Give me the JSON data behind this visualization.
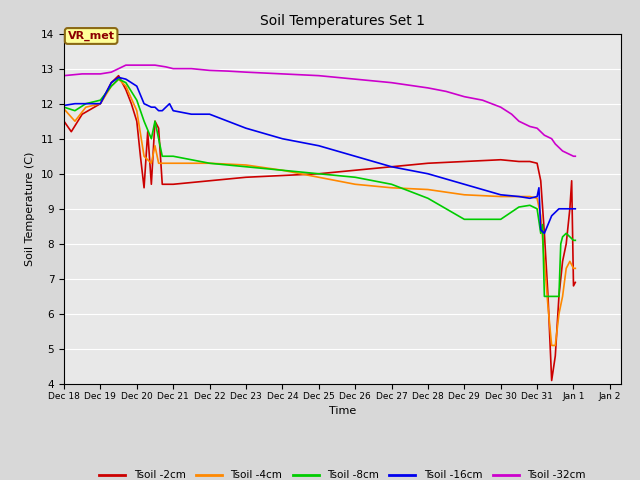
{
  "title": "Soil Temperatures Set 1",
  "xlabel": "Time",
  "ylabel": "Soil Temperature (C)",
  "ylim": [
    4.0,
    14.0
  ],
  "yticks": [
    4.0,
    5.0,
    6.0,
    7.0,
    8.0,
    9.0,
    10.0,
    11.0,
    12.0,
    13.0,
    14.0
  ],
  "fig_bg_color": "#d8d8d8",
  "plot_bg_color": "#e8e8e8",
  "annotation_text": "VR_met",
  "annotation_bg": "#ffff99",
  "annotation_border": "#8B6914",
  "series": {
    "Tsoil -2cm": {
      "color": "#cc0000",
      "data": [
        [
          18,
          11.5
        ],
        [
          18.2,
          11.2
        ],
        [
          18.5,
          11.7
        ],
        [
          19,
          12.0
        ],
        [
          19.3,
          12.6
        ],
        [
          19.5,
          12.8
        ],
        [
          19.7,
          12.4
        ],
        [
          19.85,
          12.0
        ],
        [
          20,
          11.5
        ],
        [
          20.1,
          10.5
        ],
        [
          20.2,
          9.6
        ],
        [
          20.3,
          11.2
        ],
        [
          20.4,
          9.7
        ],
        [
          20.5,
          11.5
        ],
        [
          20.6,
          11.3
        ],
        [
          20.7,
          9.7
        ],
        [
          20.8,
          9.7
        ],
        [
          21,
          9.7
        ],
        [
          22,
          9.8
        ],
        [
          23,
          9.9
        ],
        [
          24,
          9.95
        ],
        [
          25,
          10.0
        ],
        [
          26,
          10.1
        ],
        [
          27,
          10.2
        ],
        [
          28,
          10.3
        ],
        [
          29,
          10.35
        ],
        [
          30,
          10.4
        ],
        [
          30.5,
          10.35
        ],
        [
          30.8,
          10.35
        ],
        [
          31,
          10.3
        ],
        [
          31.1,
          9.8
        ],
        [
          31.2,
          8.3
        ],
        [
          31.3,
          6.5
        ],
        [
          31.4,
          4.1
        ],
        [
          31.5,
          4.8
        ],
        [
          31.6,
          6.5
        ],
        [
          31.7,
          7.5
        ],
        [
          31.8,
          8.0
        ],
        [
          31.9,
          9.0
        ],
        [
          31.95,
          9.8
        ],
        [
          32.0,
          6.8
        ],
        [
          32.05,
          6.9
        ]
      ]
    },
    "Tsoil -4cm": {
      "color": "#ff8800",
      "data": [
        [
          18,
          11.85
        ],
        [
          18.3,
          11.5
        ],
        [
          18.6,
          11.9
        ],
        [
          19,
          12.0
        ],
        [
          19.3,
          12.5
        ],
        [
          19.5,
          12.7
        ],
        [
          19.7,
          12.5
        ],
        [
          20,
          11.8
        ],
        [
          20.2,
          10.5
        ],
        [
          20.4,
          10.3
        ],
        [
          20.5,
          10.8
        ],
        [
          20.6,
          10.3
        ],
        [
          20.7,
          10.3
        ],
        [
          21,
          10.3
        ],
        [
          22,
          10.3
        ],
        [
          23,
          10.25
        ],
        [
          24,
          10.1
        ],
        [
          25,
          9.9
        ],
        [
          26,
          9.7
        ],
        [
          27,
          9.6
        ],
        [
          28,
          9.55
        ],
        [
          29,
          9.4
        ],
        [
          30,
          9.35
        ],
        [
          30.5,
          9.35
        ],
        [
          30.8,
          9.35
        ],
        [
          31,
          9.3
        ],
        [
          31.1,
          8.8
        ],
        [
          31.2,
          7.5
        ],
        [
          31.3,
          6.2
        ],
        [
          31.4,
          5.1
        ],
        [
          31.5,
          5.1
        ],
        [
          31.6,
          6.0
        ],
        [
          31.7,
          6.5
        ],
        [
          31.8,
          7.3
        ],
        [
          31.9,
          7.5
        ],
        [
          32.0,
          7.3
        ],
        [
          32.05,
          7.3
        ]
      ]
    },
    "Tsoil -8cm": {
      "color": "#00cc00",
      "data": [
        [
          18,
          11.9
        ],
        [
          18.3,
          11.8
        ],
        [
          18.6,
          12.0
        ],
        [
          19,
          12.1
        ],
        [
          19.3,
          12.5
        ],
        [
          19.5,
          12.7
        ],
        [
          19.7,
          12.6
        ],
        [
          20,
          12.1
        ],
        [
          20.2,
          11.5
        ],
        [
          20.4,
          11.0
        ],
        [
          20.5,
          11.5
        ],
        [
          20.6,
          11.0
        ],
        [
          20.7,
          10.5
        ],
        [
          21,
          10.5
        ],
        [
          22,
          10.3
        ],
        [
          23,
          10.2
        ],
        [
          24,
          10.1
        ],
        [
          25,
          10.0
        ],
        [
          26,
          9.9
        ],
        [
          27,
          9.7
        ],
        [
          28,
          9.3
        ],
        [
          29,
          8.7
        ],
        [
          29.5,
          8.7
        ],
        [
          30,
          8.7
        ],
        [
          30.5,
          9.05
        ],
        [
          30.8,
          9.1
        ],
        [
          31,
          9.0
        ],
        [
          31.1,
          8.3
        ],
        [
          31.15,
          8.55
        ],
        [
          31.2,
          6.5
        ],
        [
          31.3,
          6.5
        ],
        [
          31.4,
          6.5
        ],
        [
          31.5,
          6.5
        ],
        [
          31.6,
          6.5
        ],
        [
          31.65,
          8.0
        ],
        [
          31.7,
          8.2
        ],
        [
          31.8,
          8.3
        ],
        [
          32.0,
          8.1
        ],
        [
          32.05,
          8.1
        ]
      ]
    },
    "Tsoil -16cm": {
      "color": "#0000ee",
      "data": [
        [
          18,
          11.95
        ],
        [
          18.3,
          12.0
        ],
        [
          18.5,
          12.0
        ],
        [
          19,
          12.0
        ],
        [
          19.3,
          12.6
        ],
        [
          19.5,
          12.75
        ],
        [
          19.7,
          12.7
        ],
        [
          20,
          12.5
        ],
        [
          20.2,
          12.0
        ],
        [
          20.4,
          11.9
        ],
        [
          20.5,
          11.9
        ],
        [
          20.6,
          11.8
        ],
        [
          20.7,
          11.8
        ],
        [
          20.8,
          11.9
        ],
        [
          20.9,
          12.0
        ],
        [
          21,
          11.8
        ],
        [
          21.5,
          11.7
        ],
        [
          22,
          11.7
        ],
        [
          22.5,
          11.5
        ],
        [
          23,
          11.3
        ],
        [
          24,
          11.0
        ],
        [
          25,
          10.8
        ],
        [
          26,
          10.5
        ],
        [
          27,
          10.2
        ],
        [
          28,
          10.0
        ],
        [
          29,
          9.7
        ],
        [
          30,
          9.4
        ],
        [
          30.5,
          9.35
        ],
        [
          30.8,
          9.3
        ],
        [
          31,
          9.35
        ],
        [
          31.05,
          9.6
        ],
        [
          31.1,
          8.4
        ],
        [
          31.15,
          8.35
        ],
        [
          31.2,
          8.3
        ],
        [
          31.3,
          8.55
        ],
        [
          31.4,
          8.8
        ],
        [
          31.5,
          8.9
        ],
        [
          31.6,
          9.0
        ],
        [
          31.7,
          9.0
        ],
        [
          31.8,
          9.0
        ],
        [
          31.9,
          9.0
        ],
        [
          32.0,
          9.0
        ],
        [
          32.05,
          9.0
        ]
      ]
    },
    "Tsoil -32cm": {
      "color": "#cc00cc",
      "data": [
        [
          18,
          12.8
        ],
        [
          18.5,
          12.85
        ],
        [
          19,
          12.85
        ],
        [
          19.3,
          12.9
        ],
        [
          19.5,
          13.0
        ],
        [
          19.7,
          13.1
        ],
        [
          20,
          13.1
        ],
        [
          20.3,
          13.1
        ],
        [
          20.5,
          13.1
        ],
        [
          20.8,
          13.05
        ],
        [
          21,
          13.0
        ],
        [
          21.5,
          13.0
        ],
        [
          22,
          12.95
        ],
        [
          22.5,
          12.93
        ],
        [
          23,
          12.9
        ],
        [
          24,
          12.85
        ],
        [
          25,
          12.8
        ],
        [
          26,
          12.7
        ],
        [
          27,
          12.6
        ],
        [
          28,
          12.45
        ],
        [
          28.5,
          12.35
        ],
        [
          29,
          12.2
        ],
        [
          29.5,
          12.1
        ],
        [
          30,
          11.9
        ],
        [
          30.3,
          11.7
        ],
        [
          30.5,
          11.5
        ],
        [
          30.8,
          11.35
        ],
        [
          31,
          11.3
        ],
        [
          31.2,
          11.1
        ],
        [
          31.4,
          11.0
        ],
        [
          31.5,
          10.85
        ],
        [
          31.6,
          10.75
        ],
        [
          31.7,
          10.65
        ],
        [
          31.8,
          10.6
        ],
        [
          31.9,
          10.55
        ],
        [
          32.0,
          10.5
        ],
        [
          32.05,
          10.5
        ]
      ]
    }
  },
  "tick_labels": [
    "Dec 18",
    "Dec 19",
    "Dec 20",
    "Dec 21",
    "Dec 22",
    "Dec 23",
    "Dec 24",
    "Dec 25",
    "Dec 26",
    "Dec 27",
    "Dec 28",
    "Dec 29",
    "Dec 30",
    "Dec 31",
    "Jan 1",
    "Jan 2"
  ],
  "tick_positions": [
    18,
    19,
    20,
    21,
    22,
    23,
    24,
    25,
    26,
    27,
    28,
    29,
    30,
    31,
    32,
    33
  ],
  "xlim": [
    18,
    33.3
  ]
}
